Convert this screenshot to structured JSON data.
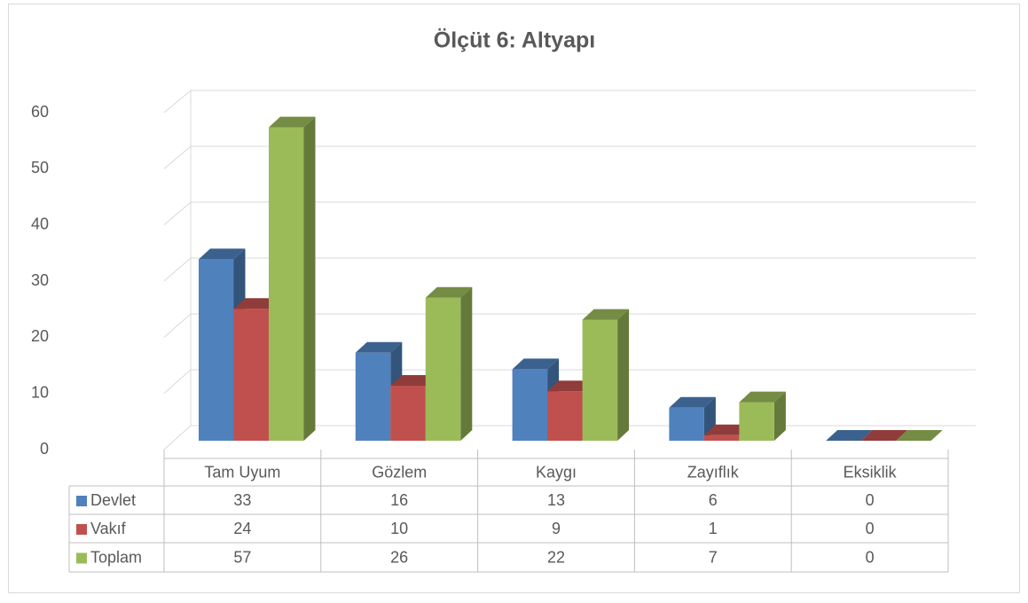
{
  "chart_data": {
    "type": "bar",
    "title": "Ölçüt 6: Altyapı",
    "categories": [
      "Tam Uyum",
      "Gözlem",
      "Kaygı",
      "Zayıflık",
      "Eksiklik"
    ],
    "series": [
      {
        "name": "Devlet",
        "color": "#4f81bd",
        "values": [
          33,
          16,
          13,
          6,
          0
        ]
      },
      {
        "name": "Vakıf",
        "color": "#c0504d",
        "values": [
          24,
          10,
          9,
          1,
          0
        ]
      },
      {
        "name": "Toplam",
        "color": "#9bbb59",
        "values": [
          57,
          26,
          22,
          7,
          0
        ]
      }
    ],
    "ylim": [
      0,
      60
    ],
    "yticks": [
      0,
      10,
      20,
      30,
      40,
      50,
      60
    ],
    "grid": true,
    "legend": "table"
  }
}
